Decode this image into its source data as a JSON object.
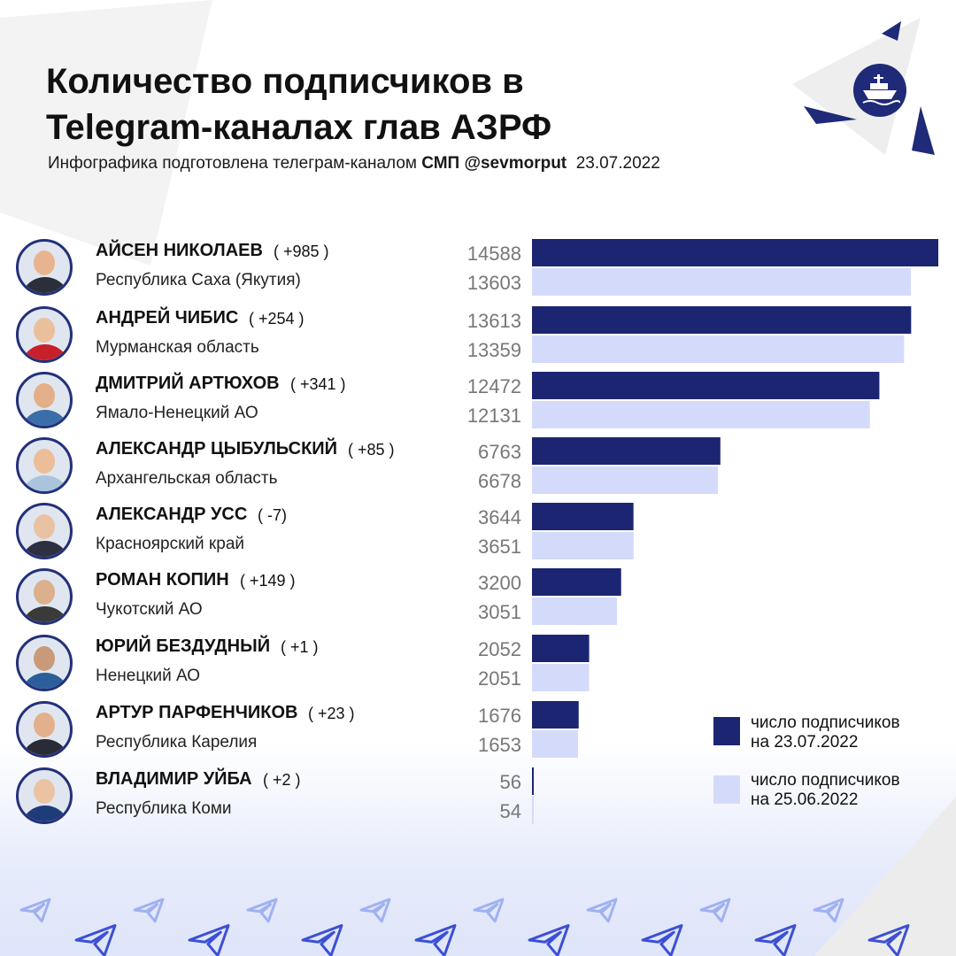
{
  "title_line1": "Количество подписчиков в",
  "title_line2": "Telegram-каналах глав АЗРФ",
  "subtitle": {
    "prefix": "Инфографика подготовлена телеграм-каналом",
    "channel": "СМП @sevmorput",
    "date": "23.07.2022"
  },
  "colors": {
    "current": "#1c2572",
    "previous": "#d4dbfa",
    "value_text": "#777777",
    "accent": "#23307a"
  },
  "icons": [
    "ship-logo-icon",
    "telegram-plane-icon"
  ],
  "chart_data": {
    "type": "bar",
    "orientation": "horizontal",
    "xlim": [
      0,
      14588
    ],
    "categories": [
      "АЙСЕН НИКОЛАЕВ",
      "АНДРЕЙ ЧИБИС",
      "ДМИТРИЙ АРТЮХОВ",
      "АЛЕКСАНДР ЦЫБУЛЬСКИЙ",
      "АЛЕКСАНДР УСС",
      "РОМАН КОПИН",
      "ЮРИЙ БЕЗДУДНЫЙ",
      "АРТУР ПАРФЕНЧИКОВ",
      "ВЛАДИМИР УЙБА"
    ],
    "regions": [
      "Республика Саха (Якутия)",
      "Мурманская область",
      "Ямало-Ненецкий АО",
      "Архангельская область",
      "Красноярский край",
      "Чукотский АО",
      "Ненецкий АО",
      "Республика Карелия",
      "Республика Коми"
    ],
    "deltas": [
      "( +985 )",
      "( +254 )",
      "( +341 )",
      "( +85 )",
      "( -7)",
      "( +149 )",
      "( +1 )",
      "( +23 )",
      "( +2 )"
    ],
    "series": [
      {
        "name": "число подписчиков на 23.07.2022",
        "values": [
          14588,
          13613,
          12472,
          6763,
          3644,
          3200,
          2052,
          1676,
          56
        ]
      },
      {
        "name": "число подписчиков на 25.06.2022",
        "values": [
          13603,
          13359,
          12131,
          6678,
          3651,
          3051,
          2051,
          1653,
          54
        ]
      }
    ],
    "legend": {
      "position": "bottom-right",
      "current_line1": "число подписчиков",
      "current_line2": "на 23.07.2022",
      "previous_line1": "число подписчиков",
      "previous_line2": "на 25.06.2022"
    },
    "grid": false
  }
}
